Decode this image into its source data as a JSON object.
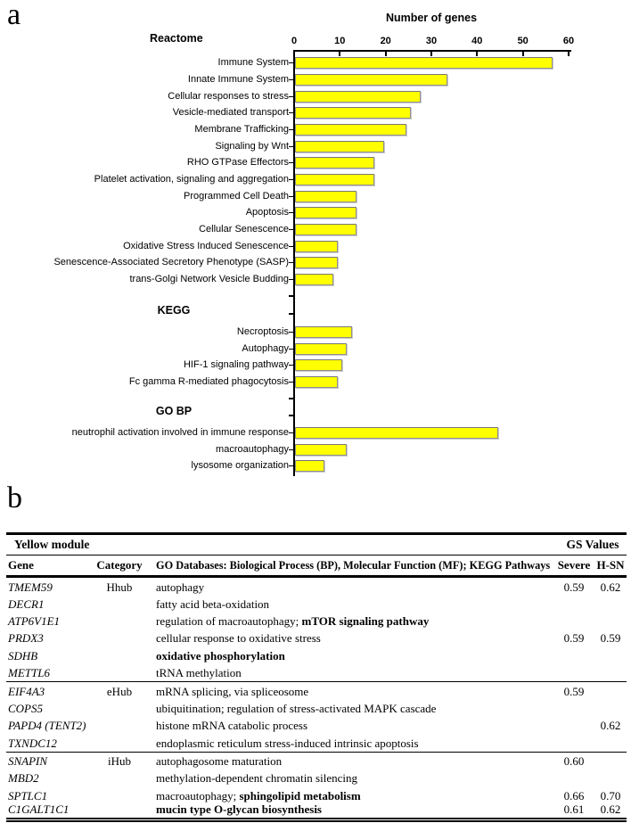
{
  "figure": {
    "panel_a_label": "a",
    "panel_b_label": "b"
  },
  "chart_data": {
    "type": "bar",
    "orientation": "horizontal",
    "title": "Number of genes",
    "xlabel": "Number of genes",
    "xlim": [
      0,
      60
    ],
    "xticks": [
      "0",
      "10",
      "20",
      "30",
      "40",
      "50",
      "60"
    ],
    "grid": false,
    "bar_color": "#ffff00",
    "bar_border_color": "#8f8f8f",
    "sections": [
      {
        "name": "Reactome",
        "items": [
          {
            "label": "Immune System",
            "value": 56
          },
          {
            "label": "Innate Immune System",
            "value": 33
          },
          {
            "label": "Cellular responses to stress",
            "value": 27
          },
          {
            "label": "Vesicle-mediated transport",
            "value": 25
          },
          {
            "label": "Membrane Trafficking",
            "value": 24
          },
          {
            "label": "Signaling by Wnt",
            "value": 19
          },
          {
            "label": "RHO GTPase Effectors",
            "value": 17
          },
          {
            "label": "Platelet activation, signaling and aggregation",
            "value": 17
          },
          {
            "label": "Programmed Cell Death",
            "value": 13
          },
          {
            "label": "Apoptosis",
            "value": 13
          },
          {
            "label": "Cellular Senescence",
            "value": 13
          },
          {
            "label": "Oxidative Stress Induced Senescence",
            "value": 9
          },
          {
            "label": "Senescence-Associated Secretory Phenotype (SASP)",
            "value": 9
          },
          {
            "label": "trans-Golgi Network Vesicle Budding",
            "value": 8
          }
        ]
      },
      {
        "name": "KEGG",
        "items": [
          {
            "label": "Necroptosis",
            "value": 12
          },
          {
            "label": "Autophagy",
            "value": 11
          },
          {
            "label": "HIF-1 signaling pathway",
            "value": 10
          },
          {
            "label": "Fc gamma R-mediated phagocytosis",
            "value": 9
          }
        ]
      },
      {
        "name": "GO BP",
        "items": [
          {
            "label": "neutrophil activation involved in immune response",
            "value": 44
          },
          {
            "label": "macroautophagy",
            "value": 11
          },
          {
            "label": "lysosome organization",
            "value": 6
          }
        ]
      }
    ]
  },
  "table": {
    "module_title": "Yellow module",
    "gs_values_header": "GS Values",
    "columns": {
      "gene": "Gene",
      "category": "Category",
      "description": "GO Databases: Biological Process (BP), Molecular Function (MF); KEGG Pathways",
      "severe": "Severe",
      "hsn": "H-SN"
    },
    "rows": [
      {
        "gene": "TMEM59",
        "category": "Hhub",
        "desc": "autophagy",
        "desc_bold": "",
        "severe": "0.59",
        "hsn": "0.62"
      },
      {
        "gene": "DECR1",
        "category": "",
        "desc": "fatty acid beta-oxidation",
        "desc_bold": "",
        "severe": "",
        "hsn": ""
      },
      {
        "gene": "ATP6V1E1",
        "category": "",
        "desc": "regulation of macroautophagy; ",
        "desc_bold": "mTOR signaling pathway",
        "severe": "",
        "hsn": ""
      },
      {
        "gene": "PRDX3",
        "category": "",
        "desc": "cellular response to oxidative stress",
        "desc_bold": "",
        "severe": "0.59",
        "hsn": "0.59"
      },
      {
        "gene": "SDHB",
        "category": "",
        "desc": "",
        "desc_bold": "oxidative phosphorylation",
        "severe": "",
        "hsn": ""
      },
      {
        "gene": "METTL6",
        "category": "",
        "desc": "tRNA methylation",
        "desc_bold": "",
        "severe": "",
        "hsn": ""
      },
      {
        "gene": "EIF4A3",
        "category": "eHub",
        "desc": "mRNA splicing, via spliceosome",
        "desc_bold": "",
        "severe": "0.59",
        "hsn": ""
      },
      {
        "gene": "COPS5",
        "category": "",
        "desc": "ubiquitination; regulation of stress-activated MAPK cascade",
        "desc_bold": "",
        "severe": "",
        "hsn": ""
      },
      {
        "gene": "PAPD4 (TENT2)",
        "category": "",
        "desc": "histone mRNA catabolic process",
        "desc_bold": "",
        "severe": "",
        "hsn": "0.62"
      },
      {
        "gene": "TXNDC12",
        "category": "",
        "desc": "endoplasmic reticulum stress-induced intrinsic apoptosis",
        "desc_bold": "",
        "severe": "",
        "hsn": ""
      },
      {
        "gene": "SNAPIN",
        "category": "iHub",
        "desc": "autophagosome maturation",
        "desc_bold": "",
        "severe": "0.60",
        "hsn": ""
      },
      {
        "gene": "MBD2",
        "category": "",
        "desc": "methylation-dependent chromatin silencing",
        "desc_bold": "",
        "severe": "",
        "hsn": ""
      },
      {
        "gene": "SPTLC1",
        "category": "",
        "desc": "macroautophagy; ",
        "desc_bold": "sphingolipid metabolism",
        "severe": "0.66",
        "hsn": "0.70"
      },
      {
        "gene": "C1GALT1C1",
        "category": "",
        "desc": "",
        "desc_bold": "mucin type O-glycan biosynthesis",
        "severe": "0.61",
        "hsn": "0.62"
      }
    ]
  }
}
